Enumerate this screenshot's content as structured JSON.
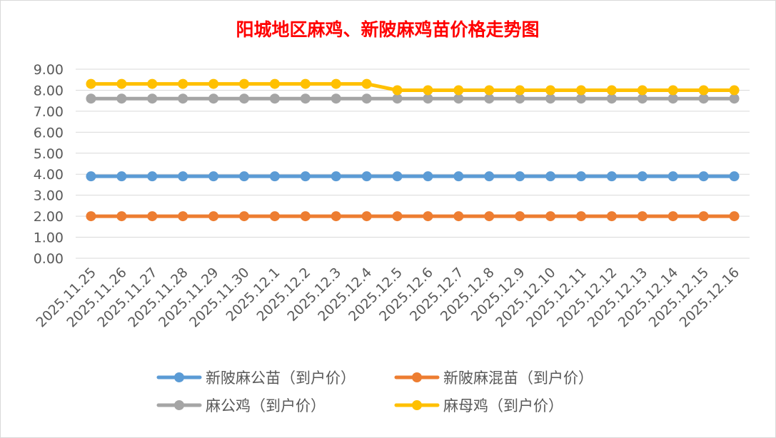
{
  "chart_data": {
    "type": "line",
    "title": "阳城地区麻鸡、新陂麻鸡苗价格走势图",
    "xlabel": "",
    "ylabel": "",
    "ylim": [
      0,
      9
    ],
    "yticks": [
      "0.00",
      "1.00",
      "2.00",
      "3.00",
      "4.00",
      "5.00",
      "6.00",
      "7.00",
      "8.00",
      "9.00"
    ],
    "grid": true,
    "legend_position": "bottom",
    "categories": [
      "2025.11.25",
      "2025.11.26",
      "2025.11.27",
      "2025.11.28",
      "2025.11.29",
      "2025.11.30",
      "2025.12.1",
      "2025.12.2",
      "2025.12.3",
      "2025.12.4",
      "2025.12.5",
      "2025.12.6",
      "2025.12.7",
      "2025.12.8",
      "2025.12.9",
      "2025.12.10",
      "2025.12.11",
      "2025.12.12",
      "2025.12.13",
      "2025.12.14",
      "2025.12.15",
      "2025.12.16"
    ],
    "series": [
      {
        "name": "新陂麻公苗（到户价）",
        "color": "#5b9bd5",
        "values": [
          3.9,
          3.9,
          3.9,
          3.9,
          3.9,
          3.9,
          3.9,
          3.9,
          3.9,
          3.9,
          3.9,
          3.9,
          3.9,
          3.9,
          3.9,
          3.9,
          3.9,
          3.9,
          3.9,
          3.9,
          3.9,
          3.9
        ]
      },
      {
        "name": "新陂麻混苗（到户价）",
        "color": "#ed7d31",
        "values": [
          2.0,
          2.0,
          2.0,
          2.0,
          2.0,
          2.0,
          2.0,
          2.0,
          2.0,
          2.0,
          2.0,
          2.0,
          2.0,
          2.0,
          2.0,
          2.0,
          2.0,
          2.0,
          2.0,
          2.0,
          2.0,
          2.0
        ]
      },
      {
        "name": "麻公鸡（到户价）",
        "color": "#a5a5a5",
        "values": [
          7.6,
          7.6,
          7.6,
          7.6,
          7.6,
          7.6,
          7.6,
          7.6,
          7.6,
          7.6,
          7.6,
          7.6,
          7.6,
          7.6,
          7.6,
          7.6,
          7.6,
          7.6,
          7.6,
          7.6,
          7.6,
          7.6
        ]
      },
      {
        "name": "麻母鸡（到户价）",
        "color": "#ffc000",
        "values": [
          8.3,
          8.3,
          8.3,
          8.3,
          8.3,
          8.3,
          8.3,
          8.3,
          8.3,
          8.3,
          8.0,
          8.0,
          8.0,
          8.0,
          8.0,
          8.0,
          8.0,
          8.0,
          8.0,
          8.0,
          8.0,
          8.0
        ]
      }
    ]
  }
}
